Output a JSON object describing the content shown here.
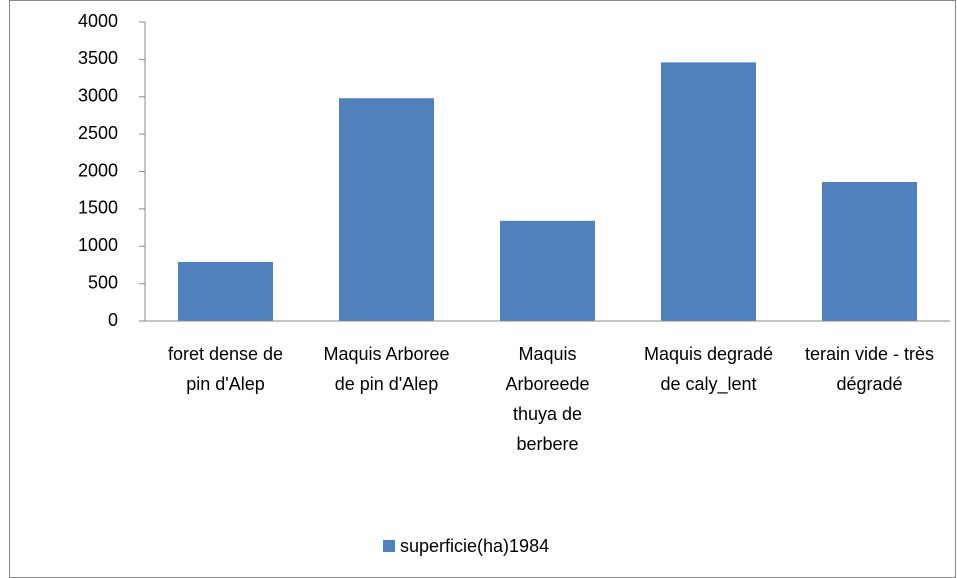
{
  "chart_data": {
    "type": "bar",
    "categories": [
      "foret dense de pin d'Alep",
      "Maquis Arboree de pin d'Alep",
      "Maquis Arboreede thuya de berbere",
      "Maquis degradé de caly_lent",
      "terain vide - très dégradé"
    ],
    "series": [
      {
        "name": "superficie(ha)1984",
        "color": "#4f81bd",
        "values": [
          790,
          2980,
          1340,
          3460,
          1860
        ]
      }
    ],
    "ylim": [
      0,
      4000
    ],
    "yticks": [
      0,
      500,
      1000,
      1500,
      2000,
      2500,
      3000,
      3500,
      4000
    ],
    "legend": "bottom"
  }
}
